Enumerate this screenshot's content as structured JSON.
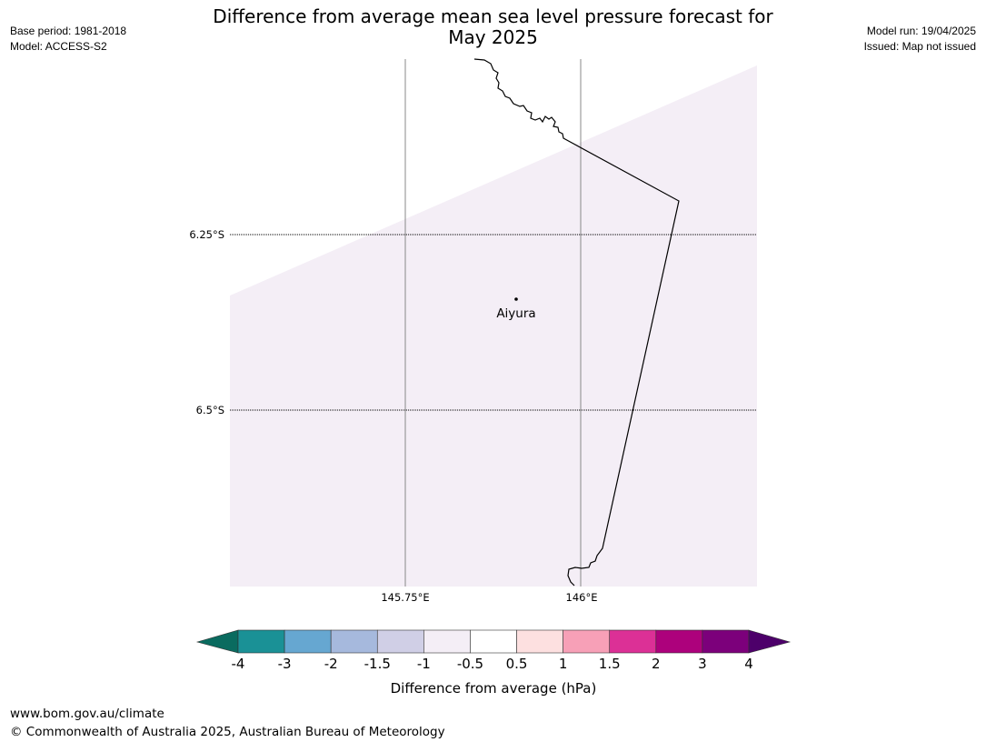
{
  "header": {
    "title_line1": "Difference from average mean sea level pressure forecast for",
    "title_line2": "May 2025",
    "base_period": "Base period: 1981-2018",
    "model": "Model: ACCESS-S2",
    "model_run": "Model run: 19/04/2025",
    "issued": "Issued: Map not issued"
  },
  "map": {
    "lat_labels": [
      "6.25°S",
      "6.5°S"
    ],
    "lon_labels": [
      "145.75°E",
      "146°E"
    ],
    "place_name": "Aiyura",
    "shade_color": "#f4eef6",
    "coast_color": "#000000"
  },
  "colorbar": {
    "label": "Difference from average (hPa)",
    "ticks": [
      "-4",
      "-3",
      "-2",
      "-1.5",
      "-1",
      "-0.5",
      "0.5",
      "1",
      "1.5",
      "2",
      "3",
      "4"
    ],
    "colors": [
      "#1a9196",
      "#66a7d1",
      "#a6b9dd",
      "#d0cfe6",
      "#f4eef6",
      "#ffffff",
      "#fde0e0",
      "#f7a0b7",
      "#dc3096",
      "#ad017c",
      "#7c007b"
    ],
    "extend_low_color": "#0a6b5f",
    "extend_high_color": "#4d006a"
  },
  "footer": {
    "url": "www.bom.gov.au/climate",
    "copyright": "© Commonwealth of Australia 2025, Australian Bureau of Meteorology"
  }
}
